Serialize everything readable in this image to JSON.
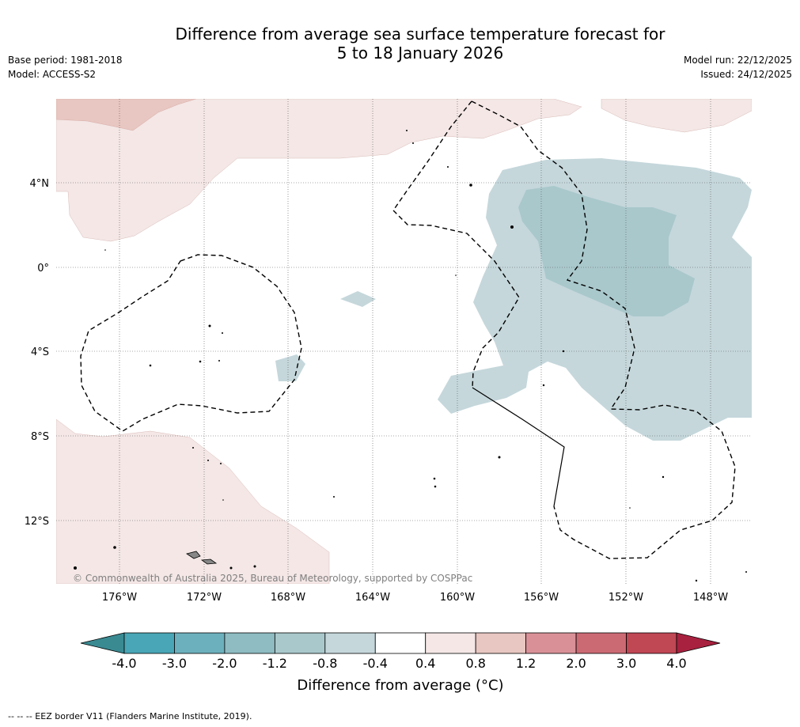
{
  "title": {
    "line1": "Difference from average sea surface temperature forecast for",
    "line2": "5 to 18 January 2026"
  },
  "meta": {
    "base_period": "Base period: 1981-2018",
    "model": "Model: ACCESS-S2",
    "model_run": "Model run: 22/12/2025",
    "issued": "Issued: 24/12/2025"
  },
  "map": {
    "lat_labels": [
      "4°N",
      "0°",
      "4°S",
      "8°S",
      "12°S"
    ],
    "lon_labels": [
      "176°W",
      "172°W",
      "168°W",
      "164°W",
      "160°W",
      "156°W",
      "152°W",
      "148°W"
    ],
    "copyright": "© Commonwealth of Australia 2025, Bureau of Meteorology, supported by COSPPac"
  },
  "colorbar": {
    "ticks": [
      "-4.0",
      "-3.0",
      "-2.0",
      "-1.2",
      "-0.8",
      "-0.4",
      "0.4",
      "0.8",
      "1.2",
      "2.0",
      "3.0",
      "4.0"
    ],
    "colors": [
      "#49a6b6",
      "#6cb0bd",
      "#8ebcc2",
      "#a9c8cc",
      "#c5d7db",
      "#ffffff",
      "#f4e7e6",
      "#e8c6c1",
      "#d99197",
      "#cc6a74",
      "#c04754"
    ],
    "low_extend_color": "#3a8a92",
    "high_extend_color": "#a8213f",
    "title": "Difference from average (°C)"
  },
  "footer": "-- -- -- EEZ border V11 (Flanders Marine Institute, 2019)."
}
